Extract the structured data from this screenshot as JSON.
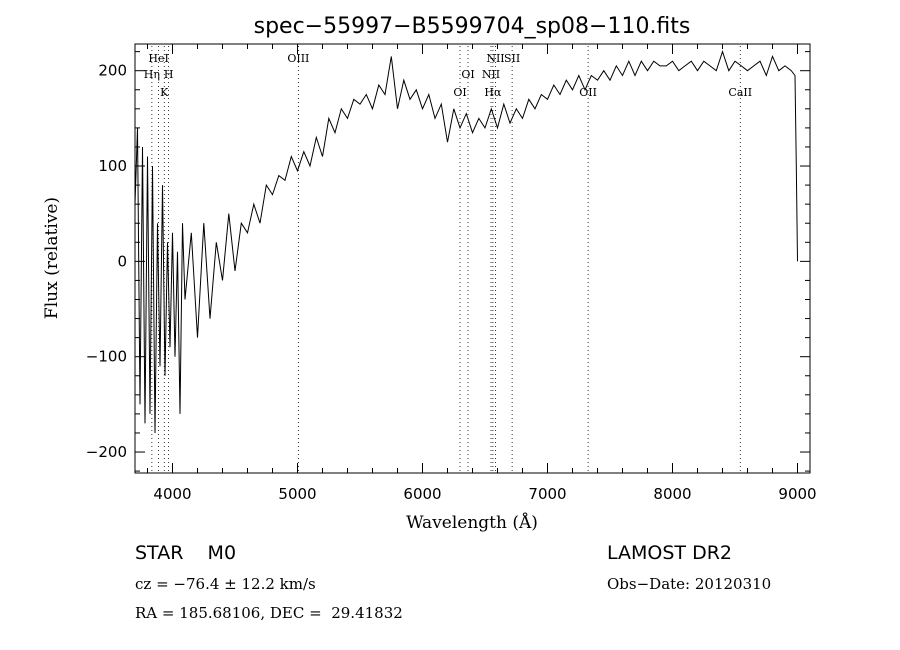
{
  "chart_data": {
    "type": "line",
    "title": "spec−55997−B5599704_sp08−110.fits",
    "xlabel": "Wavelength (Å)",
    "ylabel": "Flux (relative)",
    "xlim": [
      3700,
      9100
    ],
    "ylim": [
      -222,
      228
    ],
    "x_ticks": [
      4000,
      5000,
      6000,
      7000,
      8000,
      9000
    ],
    "y_ticks": [
      -200,
      -100,
      0,
      100,
      200
    ],
    "x_tick_labels": [
      "4000",
      "5000",
      "6000",
      "7000",
      "8000",
      "9000"
    ],
    "y_tick_labels": [
      "−200",
      "−100",
      "0",
      "100",
      "200"
    ],
    "grid": false,
    "series": [
      {
        "x": [
          3700,
          3720,
          3740,
          3760,
          3780,
          3800,
          3820,
          3840,
          3860,
          3880,
          3900,
          3920,
          3940,
          3960,
          3980,
          4000,
          4020,
          4040,
          4060,
          4080,
          4100,
          4150,
          4200,
          4250,
          4300,
          4350,
          4400,
          4450,
          4500,
          4550,
          4600,
          4650,
          4700,
          4750,
          4800,
          4850,
          4900,
          4950,
          5000,
          5050,
          5100,
          5150,
          5200,
          5250,
          5300,
          5350,
          5400,
          5450,
          5500,
          5550,
          5600,
          5650,
          5700,
          5750,
          5800,
          5850,
          5900,
          5950,
          6000,
          6050,
          6100,
          6150,
          6200,
          6250,
          6300,
          6350,
          6400,
          6450,
          6500,
          6550,
          6600,
          6650,
          6700,
          6750,
          6800,
          6850,
          6900,
          6950,
          7000,
          7050,
          7100,
          7150,
          7200,
          7250,
          7300,
          7350,
          7400,
          7450,
          7500,
          7550,
          7600,
          7650,
          7700,
          7750,
          7800,
          7850,
          7900,
          7950,
          8000,
          8050,
          8100,
          8150,
          8200,
          8250,
          8300,
          8350,
          8400,
          8450,
          8500,
          8550,
          8600,
          8650,
          8700,
          8750,
          8800,
          8850,
          8900,
          8950,
          8980,
          8990,
          9000
        ],
        "y": [
          60,
          140,
          -150,
          120,
          -170,
          110,
          -160,
          100,
          -180,
          40,
          -110,
          80,
          -120,
          20,
          -90,
          30,
          -100,
          10,
          -160,
          40,
          -40,
          30,
          -80,
          40,
          -60,
          20,
          -20,
          50,
          -10,
          40,
          30,
          60,
          40,
          80,
          70,
          90,
          85,
          110,
          95,
          115,
          100,
          130,
          110,
          150,
          135,
          160,
          150,
          170,
          165,
          175,
          160,
          185,
          175,
          215,
          160,
          190,
          170,
          180,
          160,
          175,
          150,
          165,
          125,
          160,
          140,
          155,
          135,
          150,
          140,
          160,
          140,
          165,
          145,
          160,
          150,
          170,
          160,
          175,
          170,
          185,
          175,
          190,
          180,
          195,
          180,
          195,
          190,
          200,
          190,
          205,
          195,
          210,
          195,
          210,
          200,
          210,
          205,
          205,
          210,
          200,
          205,
          210,
          200,
          210,
          205,
          200,
          220,
          200,
          210,
          205,
          200,
          205,
          210,
          195,
          215,
          200,
          205,
          200,
          195,
          100,
          0
        ]
      }
    ],
    "emission_lines": [
      {
        "label": "HeI",
        "x": 3889,
        "row": 1
      },
      {
        "label": "Hη",
        "x": 3835,
        "row": 2
      },
      {
        "label": "H",
        "x": 3969,
        "row": 2
      },
      {
        "label": "K",
        "x": 3934,
        "row": 3
      },
      {
        "label": "OIII",
        "x": 5007,
        "row": 1
      },
      {
        "label": "OI",
        "x": 6364,
        "row": 2
      },
      {
        "label": "OI",
        "x": 6300,
        "row": 3
      },
      {
        "label": "NII",
        "x": 6584,
        "row": 1
      },
      {
        "label": "SII",
        "x": 6717,
        "row": 1
      },
      {
        "label": "NII",
        "x": 6548,
        "row": 2
      },
      {
        "label": "Hα",
        "x": 6563,
        "row": 3
      },
      {
        "label": "OII",
        "x": 7325,
        "row": 3
      },
      {
        "label": "CaII",
        "x": 8542,
        "row": 3
      }
    ]
  },
  "info": {
    "object": "STAR    M0",
    "survey": "LAMOST DR2",
    "cz": "cz = −76.4 ± 12.2 km/s",
    "obs_date": "Obs−Date: 20120310",
    "radec": "RA = 185.68106, DEC =  29.41832"
  }
}
